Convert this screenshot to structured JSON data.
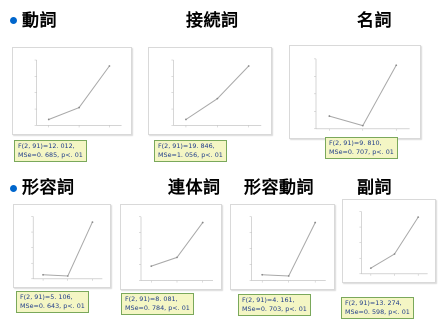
{
  "colors": {
    "bullet": "#0066cc",
    "line": "#a8a8a8",
    "stat_bg": "#f4f6c4",
    "stat_border": "#7aa85b",
    "stat_text": "#1f3c8a"
  },
  "headings": {
    "doushi": "動詞",
    "setsuzokushi": "接続詞",
    "meishi": "名詞",
    "keiyoushi": "形容詞",
    "rentaishi": "連体詞",
    "keiyoudoushi": "形容動詞",
    "fukushi": "副詞"
  },
  "stats": {
    "doushi": {
      "line1": "F(2, 91)=12. 012,",
      "line2": "MSe=0. 685,  p<. 01"
    },
    "setsuzokushi": {
      "line1": "F(2, 91)=19. 846,",
      "line2": "MSe=1. 056,  p<. 01"
    },
    "meishi": {
      "line1": "F(2, 91)=9. 810,",
      "line2": "MSe=0. 707,  p<. 01"
    },
    "keiyoushi": {
      "line1": "F(2, 91)=5. 106,",
      "line2": "MSe=0. 643,   p<. 01"
    },
    "rentaishi": {
      "line1": "F(2, 91)=8. 081,",
      "line2": "MSe=0. 784,  p<. 01"
    },
    "keiyoudoushi": {
      "line1": "F(2, 91)=4. 161,",
      "line2": "MSe=0. 703, p<. 01"
    },
    "fukushi": {
      "line1": "F(2, 91)=13. 274,",
      "line2": "MSe=0. 598, p<. 01"
    }
  },
  "chart_data": [
    {
      "type": "line",
      "x": [
        1,
        2,
        3
      ],
      "values": [
        0.1,
        0.3,
        1.0
      ],
      "ylim": [
        0,
        1.1
      ]
    },
    {
      "type": "line",
      "x": [
        1,
        2,
        3
      ],
      "values": [
        0.1,
        0.45,
        1.0
      ],
      "ylim": [
        0,
        1.1
      ]
    },
    {
      "type": "line",
      "x": [
        1,
        2,
        3
      ],
      "values": [
        0.2,
        0.05,
        1.0
      ],
      "ylim": [
        0,
        1.1
      ]
    },
    {
      "type": "line",
      "x": [
        1,
        2,
        3
      ],
      "values": [
        0.07,
        0.05,
        1.0
      ],
      "ylim": [
        0,
        1.1
      ]
    },
    {
      "type": "line",
      "x": [
        1,
        2,
        3
      ],
      "values": [
        0.25,
        0.4,
        1.0
      ],
      "ylim": [
        0,
        1.1
      ]
    },
    {
      "type": "line",
      "x": [
        1,
        2,
        3
      ],
      "values": [
        0.1,
        0.08,
        1.0
      ],
      "ylim": [
        0,
        1.1
      ]
    },
    {
      "type": "line",
      "x": [
        1,
        2,
        3
      ],
      "values": [
        0.1,
        0.35,
        1.0
      ],
      "ylim": [
        0,
        1.1
      ]
    }
  ]
}
